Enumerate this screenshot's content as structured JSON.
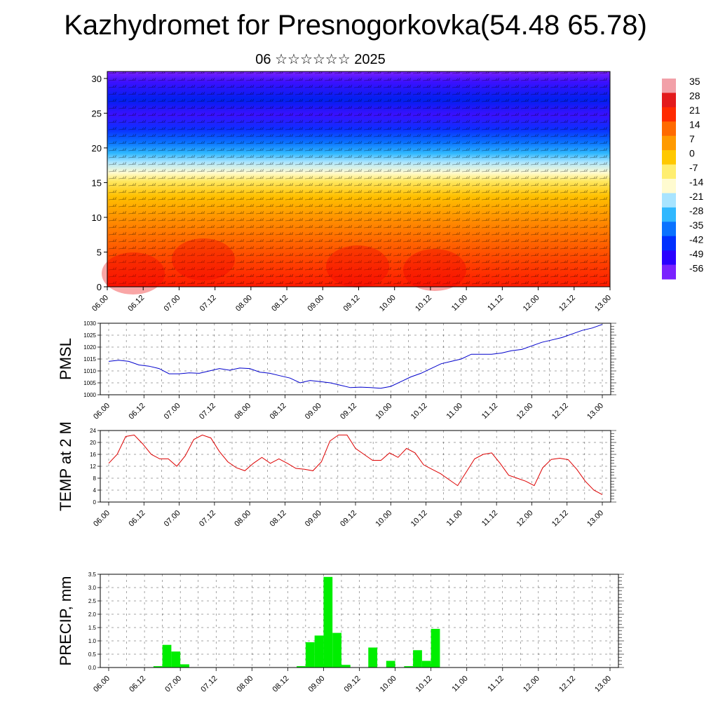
{
  "header": {
    "title": "Kazhydromet for Presnogorkovka(54.48 65.78)",
    "subtitle": "06 ☆☆☆☆☆☆ 2025"
  },
  "colors": {
    "pmsl_line": "#0000cc",
    "temp_line": "#dd0000",
    "precip_bar": "#00ee00",
    "grid": "#000000"
  },
  "chart_data": [
    {
      "id": "cross_section",
      "type": "heatmap",
      "title": "",
      "xlabel": "",
      "ylabel": "",
      "x_ticks": [
        "06.00",
        "06.12",
        "07.00",
        "07.12",
        "08.00",
        "08.12",
        "09.00",
        "09.12",
        "10.00",
        "10.12",
        "11.00",
        "11.12",
        "12.00",
        "12.12",
        "13.00"
      ],
      "y_ticks": [
        0,
        5,
        10,
        15,
        20,
        25,
        30
      ],
      "ylim": [
        0,
        31
      ],
      "overlay": "wind barbs",
      "colorbar": {
        "labels": [
          35,
          28,
          21,
          14,
          7,
          0,
          -7,
          -14,
          -21,
          -28,
          -35,
          -42,
          -49,
          -56
        ],
        "colors": [
          "#f2a0a8",
          "#e31a1c",
          "#ff2a00",
          "#ff6a00",
          "#ff9a00",
          "#ffc800",
          "#ffee70",
          "#fffbd0",
          "#a8e4ff",
          "#30b8ff",
          "#0a72ff",
          "#0030ff",
          "#2a00ff",
          "#7a22ff"
        ]
      }
    },
    {
      "id": "pmsl",
      "type": "line",
      "title": "",
      "xlabel": "",
      "ylabel": "PMSL",
      "ylim": [
        1000,
        1030
      ],
      "y_ticks": [
        1000,
        1005,
        1010,
        1015,
        1020,
        1025,
        1030
      ],
      "x_ticks": [
        "06.00",
        "06.12",
        "07.00",
        "07.12",
        "08.00",
        "08.12",
        "09.00",
        "09.12",
        "10.00",
        "10.12",
        "11.00",
        "11.12",
        "12.00",
        "12.12",
        "13.00"
      ],
      "grid": true,
      "series": [
        {
          "values": [
            1014,
            1014.5,
            1014,
            1012.5,
            1012,
            1011,
            1008.8,
            1008.8,
            1009.2,
            1009,
            1010,
            1011,
            1010.3,
            1011.2,
            1011,
            1009.5,
            1009,
            1008,
            1007,
            1005,
            1006,
            1005.5,
            1005,
            1004,
            1003,
            1003.2,
            1003,
            1002.7,
            1003.5,
            1005.5,
            1007.5,
            1009,
            1011,
            1013,
            1014,
            1015,
            1017,
            1017,
            1017,
            1017.5,
            1018.5,
            1019,
            1020.5,
            1022,
            1023,
            1024,
            1025.5,
            1027,
            1028,
            1029.5
          ]
        }
      ]
    },
    {
      "id": "temp2m",
      "type": "line",
      "title": "",
      "xlabel": "",
      "ylabel": "TEMP at 2 M",
      "ylim": [
        0,
        24
      ],
      "y_ticks": [
        0,
        4,
        8,
        12,
        16,
        20,
        24
      ],
      "x_ticks": [
        "06.00",
        "06.12",
        "07.00",
        "07.12",
        "08.00",
        "08.12",
        "09.00",
        "09.12",
        "10.00",
        "10.12",
        "11.00",
        "11.12",
        "12.00",
        "12.12",
        "13.00"
      ],
      "grid": true,
      "series": [
        {
          "values": [
            13,
            16,
            22,
            22.5,
            19.5,
            16,
            14.5,
            14.5,
            12,
            15.5,
            21,
            22.5,
            21.5,
            17,
            13.5,
            11.5,
            10.5,
            13,
            15,
            13,
            14.5,
            13,
            11.3,
            11,
            10.5,
            13.5,
            20.5,
            22.5,
            22.5,
            18,
            16,
            14,
            14,
            16.5,
            15,
            18,
            16.5,
            12.5,
            11,
            9.5,
            7.5,
            5.5,
            10,
            14.5,
            16,
            16.5,
            13,
            9,
            8,
            7,
            5.5,
            11.5,
            14.3,
            14.7,
            14.2,
            11,
            7,
            4,
            2.5
          ]
        }
      ]
    },
    {
      "id": "precip",
      "type": "bar",
      "title": "",
      "xlabel": "",
      "ylabel": "PRECIP, mm",
      "ylim": [
        0,
        3.5
      ],
      "y_ticks": [
        "0.0",
        "0.5",
        "1.0",
        "1.5",
        "2.0",
        "2.5",
        "3.0",
        "3.5"
      ],
      "x_ticks": [
        "06.00",
        "06.12",
        "07.00",
        "07.12",
        "08.00",
        "08.12",
        "09.00",
        "09.12",
        "10.00",
        "10.12",
        "11.00",
        "11.12",
        "12.00",
        "12.12",
        "13.00"
      ],
      "grid": true,
      "values": [
        0,
        0,
        0,
        0,
        0,
        0.05,
        0.85,
        0.6,
        0.12,
        0,
        0,
        0,
        0,
        0,
        0,
        0,
        0,
        0,
        0,
        0,
        0,
        0.05,
        0.95,
        1.2,
        3.4,
        1.3,
        0.1,
        0,
        0,
        0.75,
        0,
        0.25,
        0,
        0.05,
        0.65,
        0.25,
        1.45,
        0,
        0,
        0,
        0,
        0,
        0,
        0,
        0,
        0,
        0,
        0,
        0,
        0,
        0,
        0,
        0,
        0,
        0,
        0,
        0
      ]
    }
  ]
}
